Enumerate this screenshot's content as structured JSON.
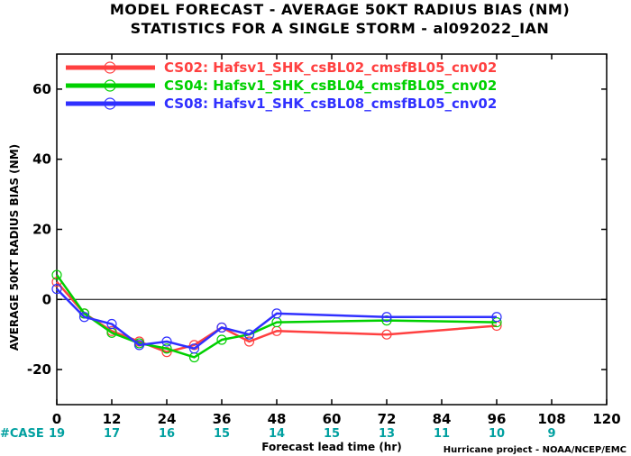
{
  "chart_data": {
    "type": "line",
    "title": "MODEL FORECAST - AVERAGE 50KT RADIUS BIAS (NM)",
    "subtitle": "STATISTICS FOR A SINGLE STORM - al092022_IAN",
    "xlabel": "Forecast lead time (hr)",
    "ylabel": "AVERAGE 50KT RADIUS BIAS (NM)",
    "xlim": [
      0,
      120
    ],
    "ylim": [
      -30,
      70
    ],
    "xticks": [
      0,
      12,
      24,
      36,
      48,
      60,
      72,
      84,
      96,
      108,
      120
    ],
    "yticks": [
      -20,
      0,
      20,
      40,
      60
    ],
    "zero_line": true,
    "legend_position": "top-left",
    "series": [
      {
        "name": "CS02: Hafsv1_SHK_csBL02_cmsfBL05_cnv02",
        "color": "#ff4040",
        "x": [
          0,
          6,
          12,
          18,
          24,
          30,
          36,
          42,
          48,
          72,
          96
        ],
        "values": [
          5,
          -4,
          -9,
          -12,
          -15,
          -13,
          -8,
          -12,
          -9,
          -10,
          -7.5
        ]
      },
      {
        "name": "CS04: Hafsv1_SHK_csBL04_cmsfBL05_cnv02",
        "color": "#00d000",
        "x": [
          0,
          6,
          12,
          18,
          24,
          30,
          36,
          42,
          48,
          72,
          96
        ],
        "values": [
          7,
          -4,
          -9.5,
          -12.5,
          -14,
          -16.5,
          -11.5,
          -10,
          -6.5,
          -6,
          -6.5
        ]
      },
      {
        "name": "CS08: Hafsv1_SHK_csBL08_cmsfBL05_cnv02",
        "color": "#3030ff",
        "x": [
          0,
          6,
          12,
          18,
          24,
          30,
          36,
          42,
          48,
          72,
          96
        ],
        "values": [
          3,
          -5,
          -7,
          -13,
          -12,
          -14,
          -8,
          -10,
          -4,
          -5,
          -5
        ]
      }
    ],
    "case_label": "#CASE",
    "case_x": [
      0,
      12,
      24,
      36,
      48,
      60,
      72,
      84,
      96,
      108
    ],
    "case_counts": [
      "19",
      "17",
      "16",
      "15",
      "14",
      "15",
      "13",
      "11",
      "10",
      "9"
    ],
    "case_color": "#00a0a0",
    "credit": "Hurricane project - NOAA/NCEP/EMC"
  }
}
